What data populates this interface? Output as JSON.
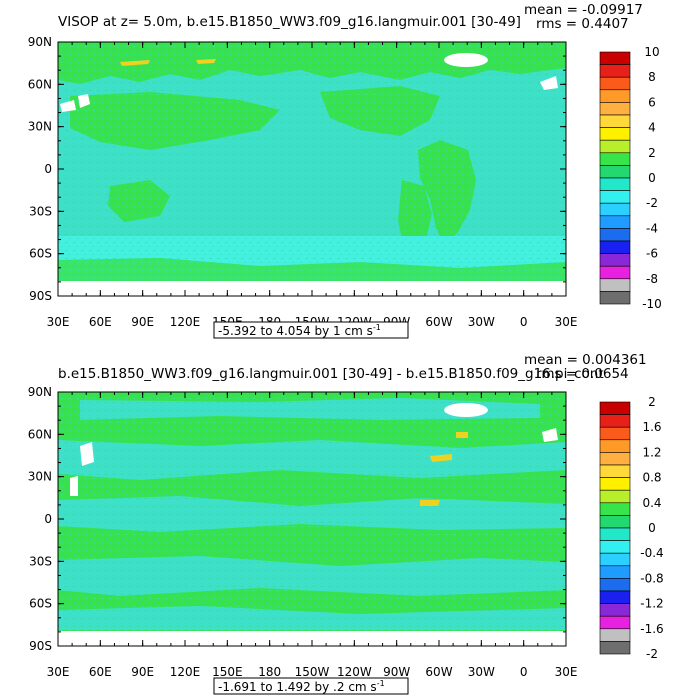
{
  "panels": [
    {
      "id": "top",
      "title": "VISOP at z=   5.0m, b.e15.B1850_WW3.f09_g16.langmuir.001 [30-49]",
      "stats": {
        "mean": "mean = -0.09917",
        "rms": "rms = 0.4407"
      },
      "range_label": "-5.392 to 4.054 by 1 cm s",
      "range_sup": "-1",
      "lat_labels": [
        "90N",
        "60N",
        "30N",
        "0",
        "30S",
        "60S",
        "90S"
      ],
      "lon_labels": [
        "30E",
        "60E",
        "90E",
        "120E",
        "150E",
        "180",
        "150W",
        "120W",
        "90W",
        "60W",
        "30W",
        "0",
        "30E"
      ],
      "colorbar_labels": [
        "10",
        "8",
        "6",
        "4",
        "2",
        "0",
        "-2",
        "-4",
        "-6",
        "-8",
        "-10"
      ]
    },
    {
      "id": "bottom",
      "title": "b.e15.B1850_WW3.f09_g16.langmuir.001 [30-49] - b.e15.B1850.f09_g16.pi_cont",
      "stats": {
        "mean": "mean = 0.004361",
        "rms": "rms = 0.0654"
      },
      "range_label": "-1.691 to 1.492 by .2 cm s",
      "range_sup": "-1",
      "lat_labels": [
        "90N",
        "60N",
        "30N",
        "0",
        "30S",
        "60S",
        "90S"
      ],
      "lon_labels": [
        "30E",
        "60E",
        "90E",
        "120E",
        "150E",
        "180",
        "150W",
        "120W",
        "90W",
        "60W",
        "30W",
        "0",
        "30E"
      ],
      "colorbar_labels": [
        "2",
        "1.6",
        "1.2",
        "0.8",
        "0.4",
        "0",
        "-0.4",
        "-0.8",
        "-1.2",
        "-1.6",
        "-2"
      ]
    }
  ],
  "colorbar_colors": [
    "#c80000",
    "#e8201a",
    "#fa5a1a",
    "#ff9a28",
    "#ffb040",
    "#ffd83a",
    "#fff000",
    "#b8ef2a",
    "#37e54a",
    "#24d870",
    "#20e8c8",
    "#33f0f0",
    "#2ad0ff",
    "#1f9cff",
    "#1c6cf0",
    "#1a20f0",
    "#8a28d8",
    "#e820e0",
    "#c0c0c0",
    "#6e6e6e"
  ],
  "map_colors": {
    "ocean": "#3ee0c8",
    "ocean_light": "#44f0e0",
    "land_fill": "#38e24e",
    "ice": "#ffffff",
    "hotspot": "#f0d020"
  }
}
